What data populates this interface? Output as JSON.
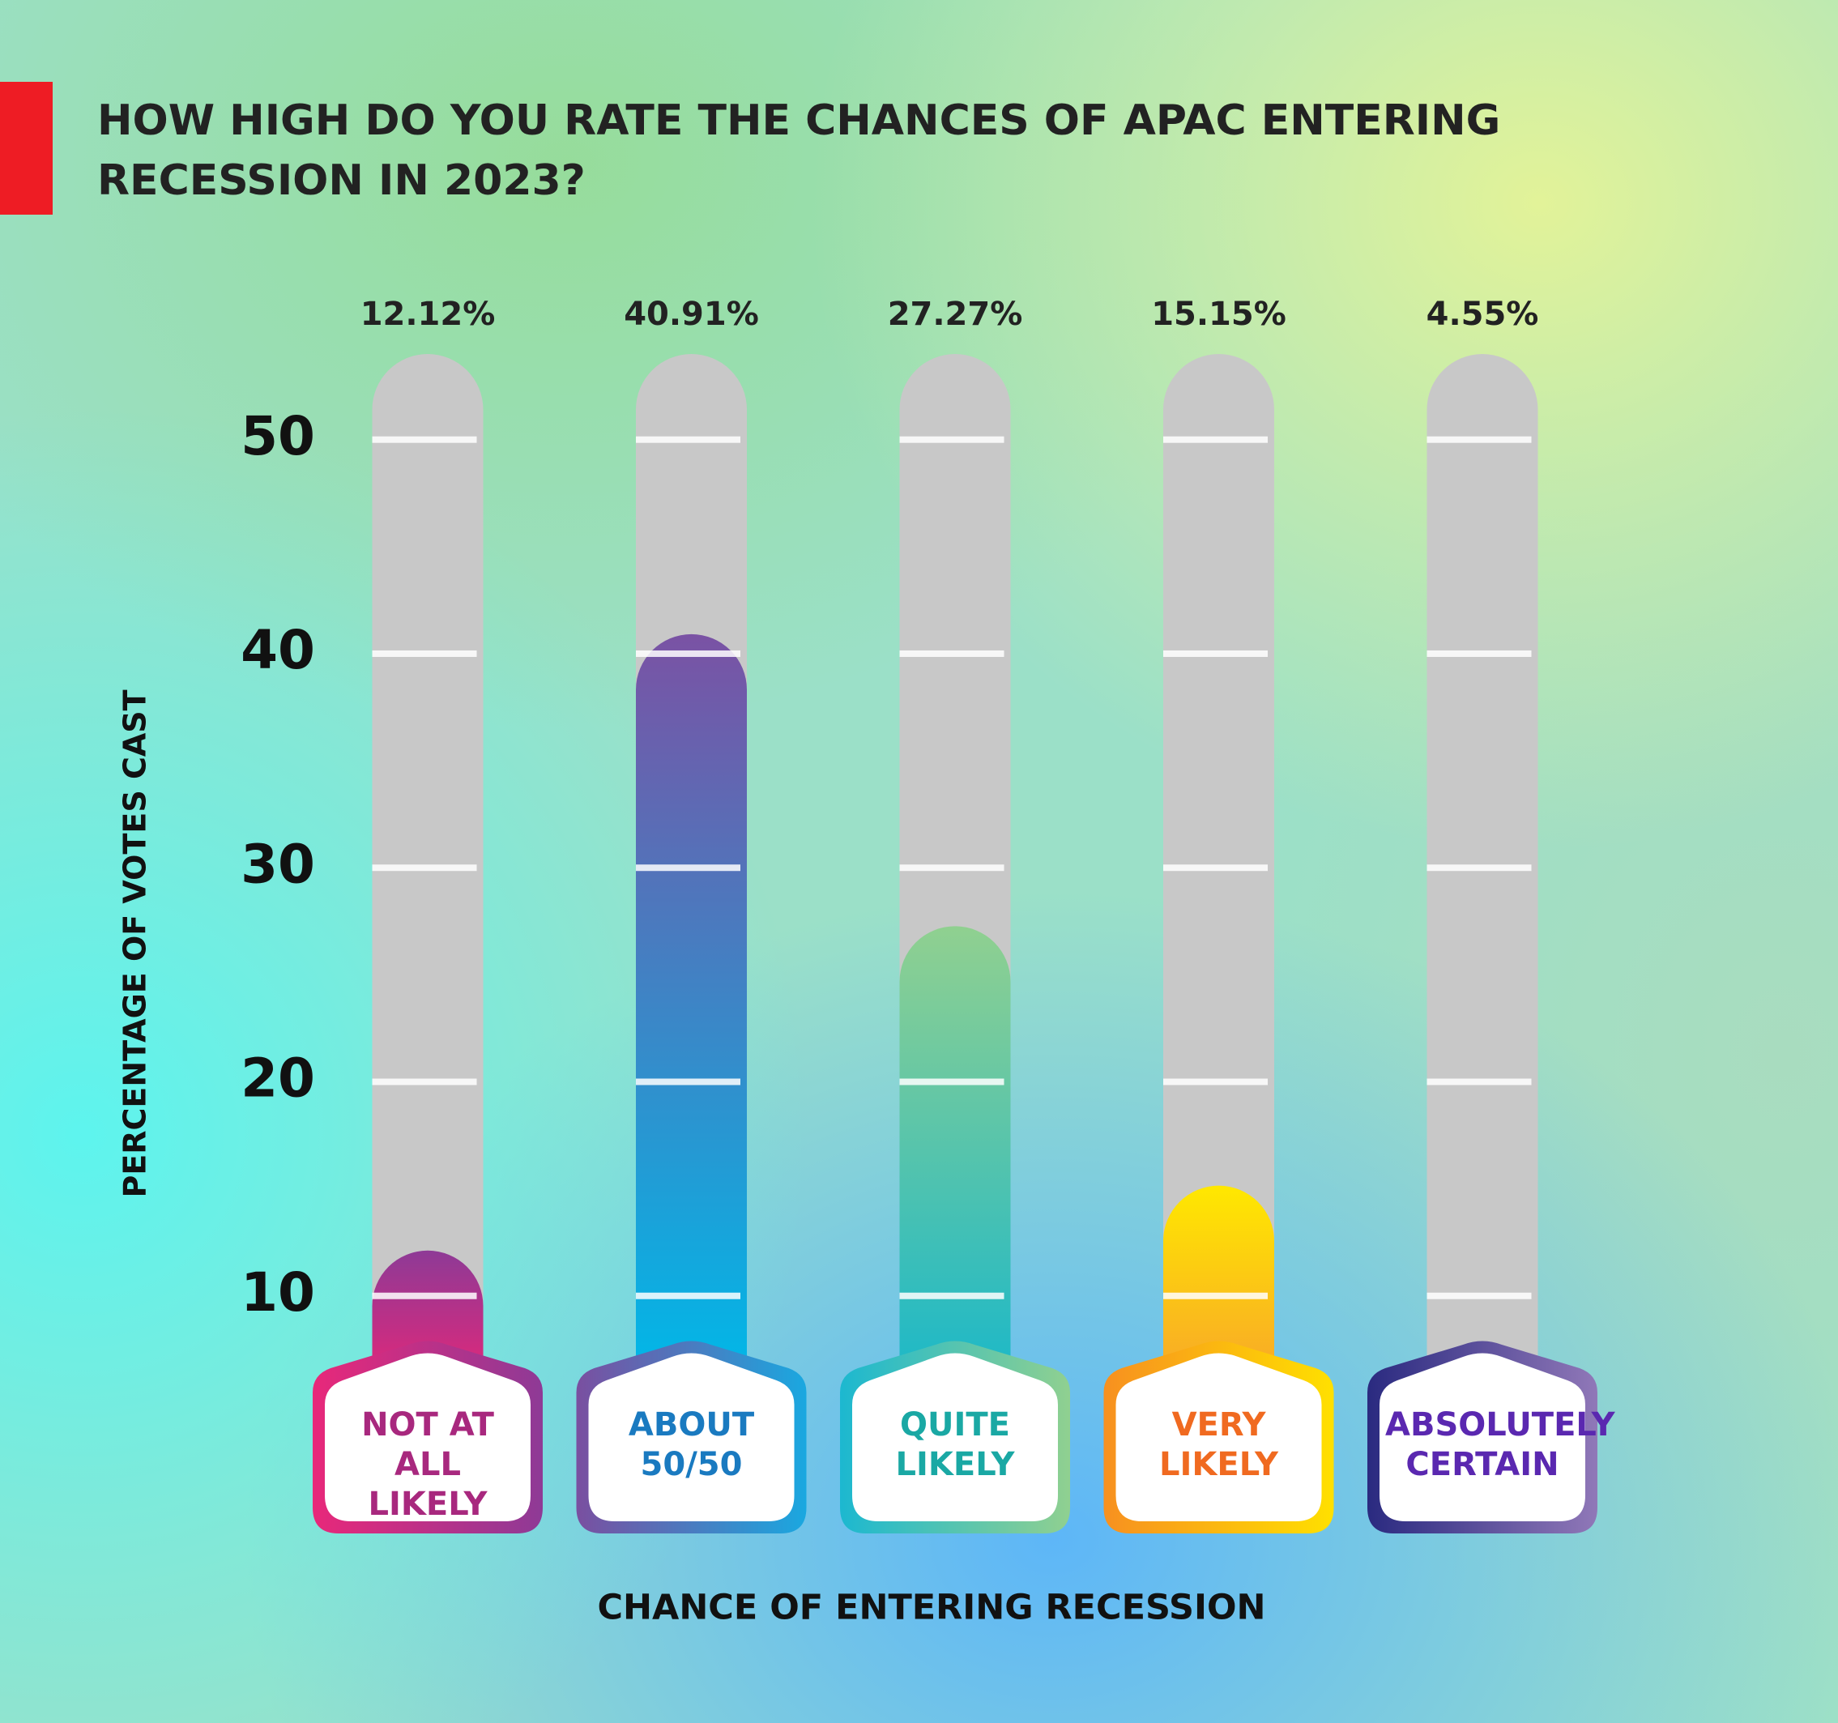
{
  "chart_data": {
    "type": "bar",
    "title": "HOW HIGH DO YOU RATE THE CHANCES OF APAC ENTERING\nRECESSION IN 2023?",
    "categories": [
      "NOT AT\nALL LIKELY",
      "ABOUT\n50/50",
      "QUITE\nLIKELY",
      "VERY\nLIKELY",
      "ABSOLUTELY\nCERTAIN"
    ],
    "values": [
      12.12,
      40.91,
      27.27,
      15.15,
      4.55
    ],
    "value_labels": [
      "12.12%",
      "40.91%",
      "27.27%",
      "15.15%",
      "4.55%"
    ],
    "bar_gradients": [
      [
        "#8e3a96",
        "#e0287a"
      ],
      [
        "#7a52a4",
        "#00b8e8"
      ],
      [
        "#90d090",
        "#1cb8c8"
      ],
      [
        "#ffe800",
        "#f8a828"
      ],
      [
        "#6a2a92",
        "#3a2a90"
      ]
    ],
    "label_colors": [
      "#a8287e",
      "#1a7ac0",
      "#1aa8a4",
      "#f06a20",
      "#5a28b0"
    ],
    "box_gradients": [
      [
        "#e8287a",
        "#8e3a96"
      ],
      [
        "#7a4fa0",
        "#1aa8e0"
      ],
      [
        "#1cb8d0",
        "#90d090"
      ],
      [
        "#f79020",
        "#ffe000"
      ],
      [
        "#2a2a80",
        "#9078b8"
      ]
    ],
    "tube_color": "#c8c8c8",
    "ylabel": "PERCENTAGE OF VOTES CAST",
    "xlabel": "CHANCE OF ENTERING RECESSION",
    "ylim": [
      0,
      54
    ],
    "yticks": [
      10,
      20,
      30,
      40,
      50
    ],
    "grid": true
  }
}
